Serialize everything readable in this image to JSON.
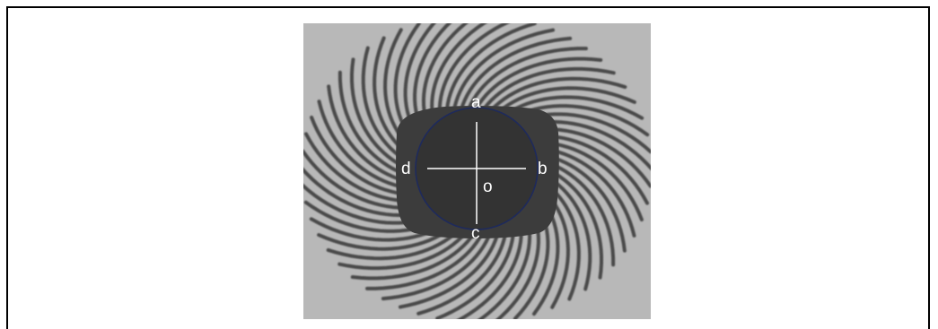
{
  "labels": {
    "a": "a",
    "b": "b",
    "c": "c",
    "d": "d",
    "o": "o"
  },
  "colors": {
    "background": "#b8b8b8",
    "spokes": "#4a4a4a",
    "dark_region": "#3c3c3c",
    "disc": "#333333",
    "disc_outline": "#1e2a5c",
    "crosshair": "#ffffff"
  },
  "spoke_count": 56
}
